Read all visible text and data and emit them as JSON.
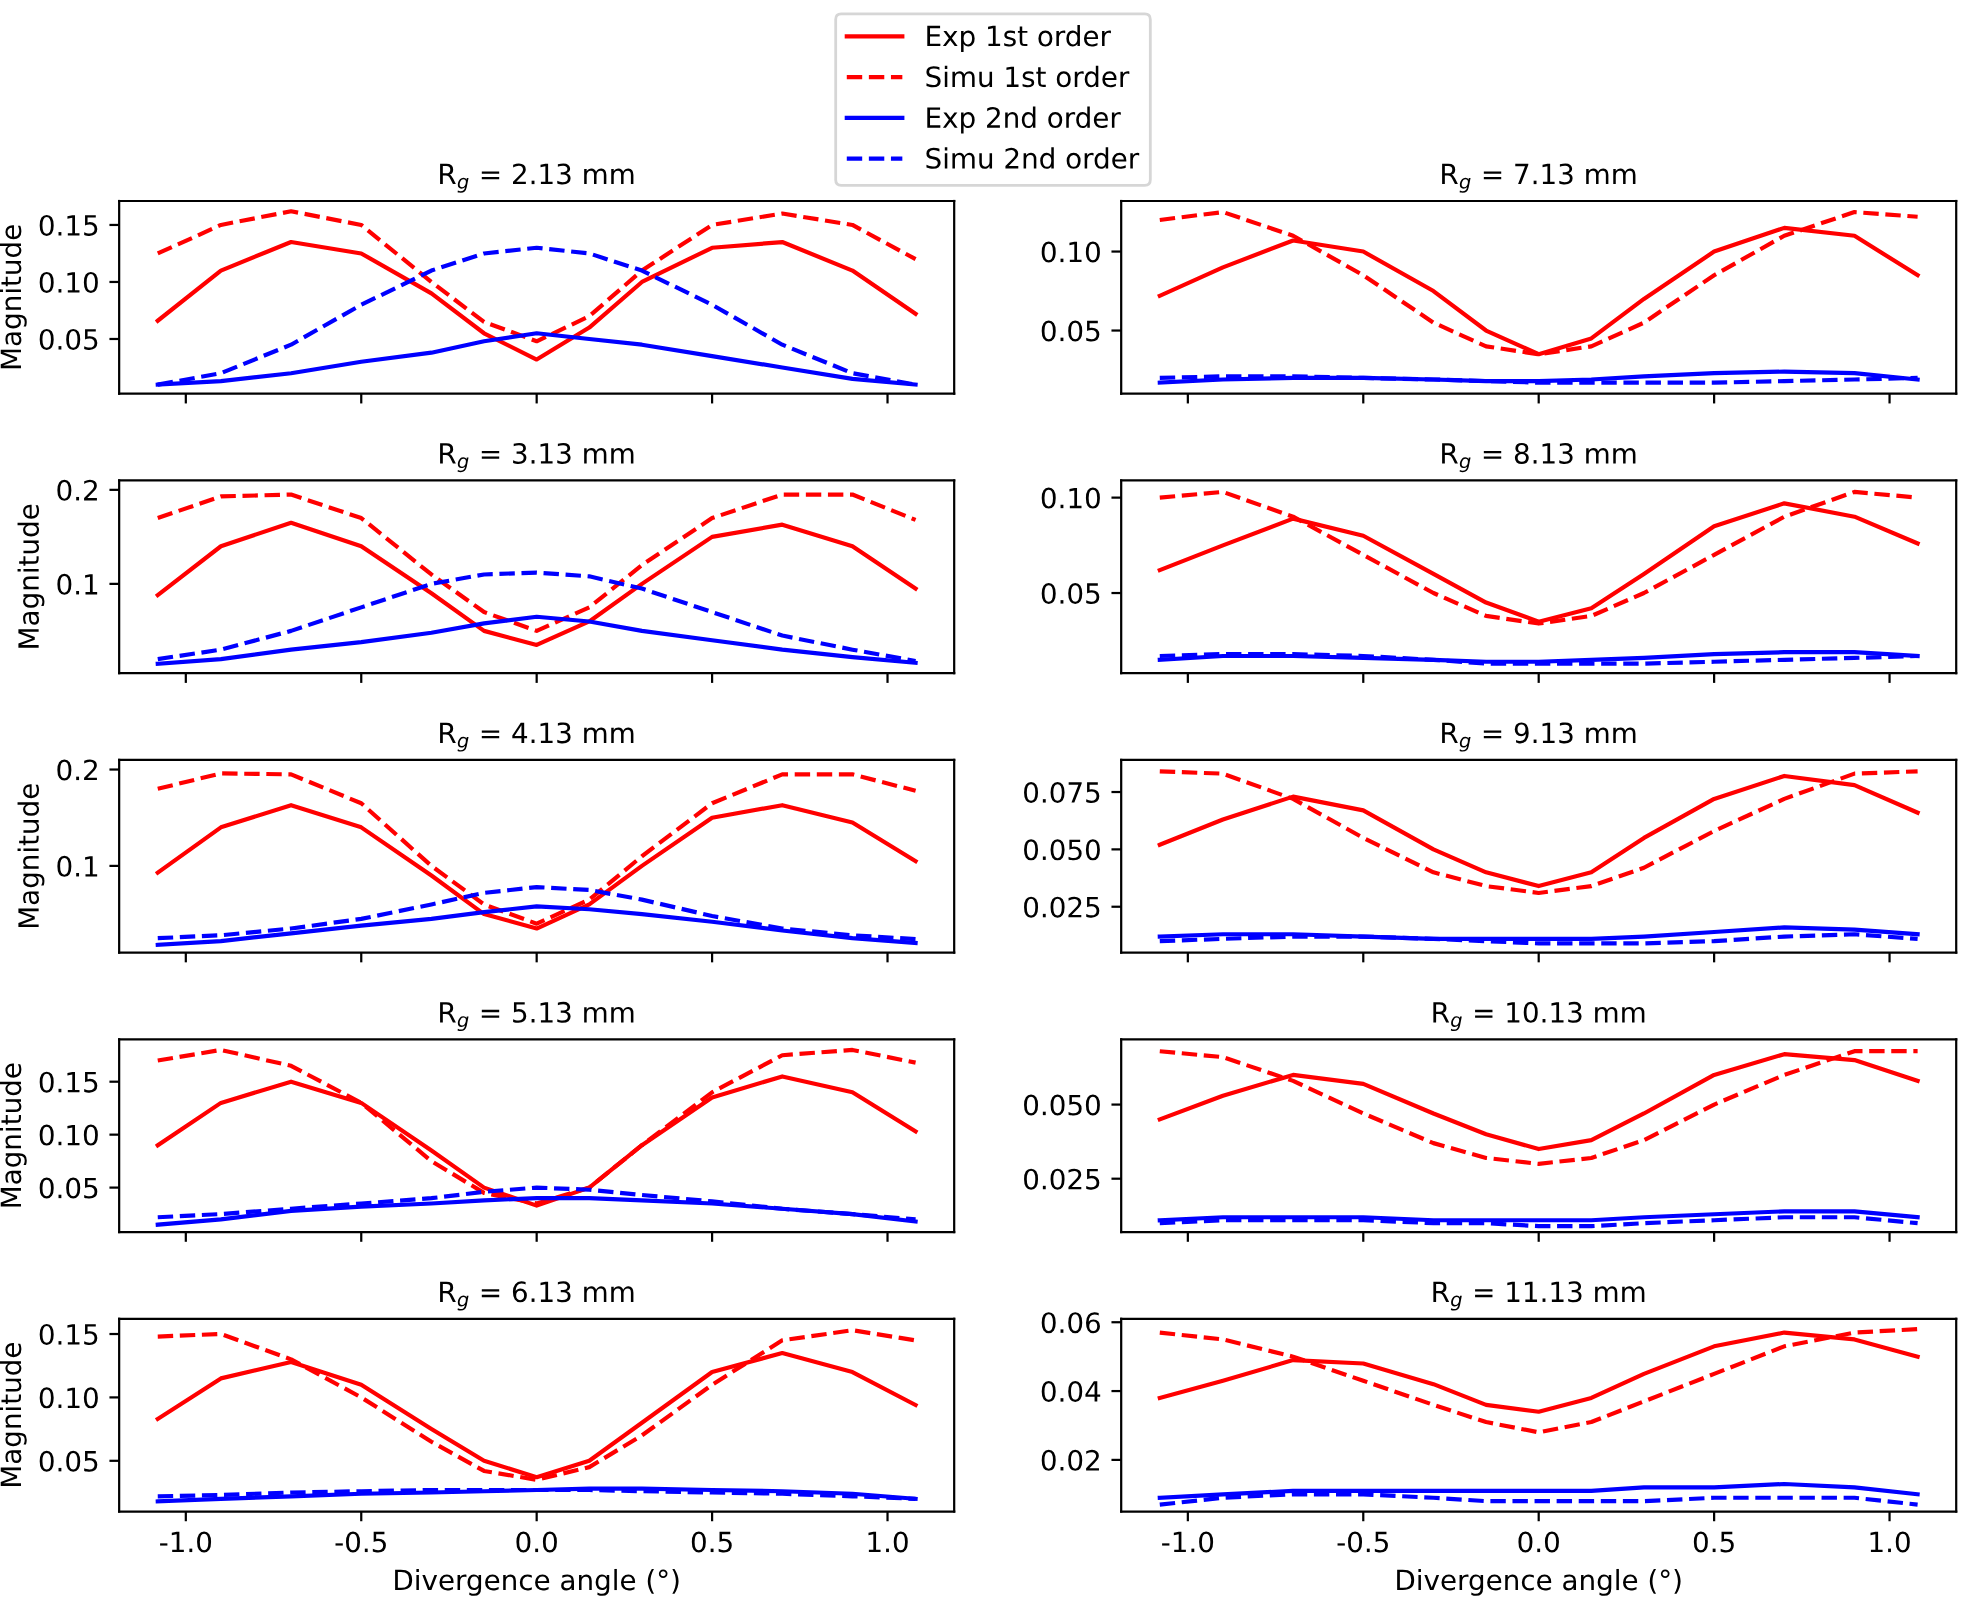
{
  "chart_data": [
    {
      "type": "line",
      "title": "R$_{g}$ = 2.13 mm",
      "ylabel": "Magnitude",
      "x": [
        -1.08,
        -0.9,
        -0.7,
        -0.5,
        -0.3,
        -0.15,
        0,
        0.15,
        0.3,
        0.5,
        0.7,
        0.9,
        1.08
      ],
      "xlim": [
        -1.19,
        1.19
      ],
      "xticks": [
        -1.0,
        -0.5,
        0.0,
        0.5,
        1.0
      ],
      "ylim": [
        0.002,
        0.171
      ],
      "yticks": [
        {
          "value": 0.05,
          "label": "0.05"
        },
        {
          "value": 0.1,
          "label": "0.10"
        },
        {
          "value": 0.15,
          "label": "0.15"
        }
      ],
      "tick_labels": "y",
      "legend": "top",
      "series": [
        {
          "name": "Exp 1st order",
          "color": "#ff0000",
          "line_style": "solid",
          "values": [
            0.066,
            0.11,
            0.135,
            0.125,
            0.09,
            0.055,
            0.032,
            0.06,
            0.1,
            0.13,
            0.135,
            0.11,
            0.072
          ]
        },
        {
          "name": "Simu 1st order",
          "color": "#ff0000",
          "line_style": "dashed",
          "values": [
            0.125,
            0.15,
            0.162,
            0.15,
            0.1,
            0.065,
            0.048,
            0.07,
            0.11,
            0.15,
            0.16,
            0.15,
            0.12
          ]
        },
        {
          "name": "Exp 2nd order",
          "color": "#0000ff",
          "line_style": "solid",
          "values": [
            0.01,
            0.013,
            0.02,
            0.03,
            0.038,
            0.048,
            0.055,
            0.05,
            0.045,
            0.035,
            0.025,
            0.015,
            0.01
          ]
        },
        {
          "name": "Simu 2nd order",
          "color": "#0000ff",
          "line_style": "dashed",
          "values": [
            0.01,
            0.02,
            0.045,
            0.08,
            0.11,
            0.125,
            0.13,
            0.125,
            0.11,
            0.08,
            0.045,
            0.02,
            0.01
          ]
        }
      ]
    },
    {
      "type": "line",
      "title": "R$_{g}$ = 7.13 mm",
      "x": [
        -1.08,
        -0.9,
        -0.7,
        -0.5,
        -0.3,
        -0.15,
        0,
        0.15,
        0.3,
        0.5,
        0.7,
        0.9,
        1.08
      ],
      "xlim": [
        -1.19,
        1.19
      ],
      "xticks": [
        -1.0,
        -0.5,
        0.0,
        0.5,
        1.0
      ],
      "ylim": [
        0.01,
        0.132
      ],
      "yticks": [
        {
          "value": 0.05,
          "label": "0.05"
        },
        {
          "value": 0.1,
          "label": "0.10"
        }
      ],
      "tick_labels": "y",
      "series": [
        {
          "color": "#ff0000",
          "line_style": "solid",
          "values": [
            0.072,
            0.09,
            0.107,
            0.1,
            0.075,
            0.05,
            0.035,
            0.045,
            0.07,
            0.1,
            0.115,
            0.11,
            0.085
          ]
        },
        {
          "color": "#ff0000",
          "line_style": "dashed",
          "values": [
            0.12,
            0.125,
            0.11,
            0.085,
            0.055,
            0.04,
            0.035,
            0.04,
            0.055,
            0.085,
            0.11,
            0.125,
            0.122
          ]
        },
        {
          "color": "#0000ff",
          "line_style": "solid",
          "values": [
            0.017,
            0.019,
            0.02,
            0.02,
            0.019,
            0.018,
            0.018,
            0.019,
            0.021,
            0.023,
            0.024,
            0.023,
            0.019
          ]
        },
        {
          "color": "#0000ff",
          "line_style": "dashed",
          "values": [
            0.02,
            0.021,
            0.021,
            0.02,
            0.019,
            0.018,
            0.017,
            0.017,
            0.017,
            0.017,
            0.018,
            0.019,
            0.02
          ]
        }
      ]
    },
    {
      "type": "line",
      "title": "R$_{g}$ = 3.13 mm",
      "ylabel": "Magnitude",
      "x": [
        -1.08,
        -0.9,
        -0.7,
        -0.5,
        -0.3,
        -0.15,
        0,
        0.15,
        0.3,
        0.5,
        0.7,
        0.9,
        1.08
      ],
      "xlim": [
        -1.19,
        1.19
      ],
      "xticks": [
        -1.0,
        -0.5,
        0.0,
        0.5,
        1.0
      ],
      "ylim": [
        0.005,
        0.21
      ],
      "yticks": [
        0.1,
        0.2
      ],
      "tick_labels": "y",
      "series": [
        {
          "color": "#ff0000",
          "line_style": "solid",
          "values": [
            0.088,
            0.14,
            0.165,
            0.14,
            0.09,
            0.05,
            0.035,
            0.06,
            0.1,
            0.15,
            0.163,
            0.14,
            0.095
          ]
        },
        {
          "color": "#ff0000",
          "line_style": "dashed",
          "values": [
            0.17,
            0.193,
            0.195,
            0.17,
            0.11,
            0.07,
            0.05,
            0.075,
            0.12,
            0.17,
            0.195,
            0.195,
            0.168
          ]
        },
        {
          "color": "#0000ff",
          "line_style": "solid",
          "values": [
            0.015,
            0.02,
            0.03,
            0.038,
            0.048,
            0.058,
            0.065,
            0.06,
            0.05,
            0.04,
            0.03,
            0.022,
            0.016
          ]
        },
        {
          "color": "#0000ff",
          "line_style": "dashed",
          "values": [
            0.02,
            0.03,
            0.05,
            0.075,
            0.1,
            0.11,
            0.112,
            0.108,
            0.095,
            0.07,
            0.045,
            0.03,
            0.018
          ]
        }
      ]
    },
    {
      "type": "line",
      "title": "R$_{g}$ = 8.13 mm",
      "x": [
        -1.08,
        -0.9,
        -0.7,
        -0.5,
        -0.3,
        -0.15,
        0,
        0.15,
        0.3,
        0.5,
        0.7,
        0.9,
        1.08
      ],
      "xlim": [
        -1.19,
        1.19
      ],
      "xticks": [
        -1.0,
        -0.5,
        0.0,
        0.5,
        1.0
      ],
      "ylim": [
        0.008,
        0.109
      ],
      "yticks": [
        {
          "value": 0.05,
          "label": "0.05"
        },
        {
          "value": 0.1,
          "label": "0.10"
        }
      ],
      "tick_labels": "y",
      "series": [
        {
          "color": "#ff0000",
          "line_style": "solid",
          "values": [
            0.062,
            0.075,
            0.089,
            0.08,
            0.06,
            0.045,
            0.035,
            0.042,
            0.06,
            0.085,
            0.097,
            0.09,
            0.076
          ]
        },
        {
          "color": "#ff0000",
          "line_style": "dashed",
          "values": [
            0.1,
            0.103,
            0.09,
            0.07,
            0.05,
            0.038,
            0.034,
            0.038,
            0.05,
            0.07,
            0.09,
            0.103,
            0.1
          ]
        },
        {
          "color": "#0000ff",
          "line_style": "solid",
          "values": [
            0.015,
            0.017,
            0.017,
            0.016,
            0.015,
            0.014,
            0.014,
            0.015,
            0.016,
            0.018,
            0.019,
            0.019,
            0.017
          ]
        },
        {
          "color": "#0000ff",
          "line_style": "dashed",
          "values": [
            0.017,
            0.018,
            0.018,
            0.017,
            0.015,
            0.013,
            0.013,
            0.013,
            0.013,
            0.014,
            0.015,
            0.016,
            0.017
          ]
        }
      ]
    },
    {
      "type": "line",
      "title": "R$_{g}$ = 4.13 mm",
      "ylabel": "Magnitude",
      "x": [
        -1.08,
        -0.9,
        -0.7,
        -0.5,
        -0.3,
        -0.15,
        0,
        0.15,
        0.3,
        0.5,
        0.7,
        0.9,
        1.08
      ],
      "xlim": [
        -1.19,
        1.19
      ],
      "xticks": [
        -1.0,
        -0.5,
        0.0,
        0.5,
        1.0
      ],
      "ylim": [
        0.01,
        0.21
      ],
      "yticks": [
        0.1,
        0.2
      ],
      "tick_labels": "y",
      "series": [
        {
          "color": "#ff0000",
          "line_style": "solid",
          "values": [
            0.093,
            0.14,
            0.163,
            0.14,
            0.09,
            0.05,
            0.035,
            0.06,
            0.1,
            0.15,
            0.163,
            0.145,
            0.105
          ]
        },
        {
          "color": "#ff0000",
          "line_style": "dashed",
          "values": [
            0.18,
            0.196,
            0.195,
            0.165,
            0.1,
            0.06,
            0.04,
            0.065,
            0.11,
            0.165,
            0.195,
            0.195,
            0.178
          ]
        },
        {
          "color": "#0000ff",
          "line_style": "solid",
          "values": [
            0.018,
            0.022,
            0.03,
            0.038,
            0.045,
            0.052,
            0.058,
            0.055,
            0.05,
            0.042,
            0.033,
            0.025,
            0.02
          ]
        },
        {
          "color": "#0000ff",
          "line_style": "dashed",
          "values": [
            0.025,
            0.028,
            0.035,
            0.045,
            0.06,
            0.072,
            0.078,
            0.075,
            0.065,
            0.048,
            0.035,
            0.028,
            0.024
          ]
        }
      ]
    },
    {
      "type": "line",
      "title": "R$_{g}$ = 9.13 mm",
      "x": [
        -1.08,
        -0.9,
        -0.7,
        -0.5,
        -0.3,
        -0.15,
        0,
        0.15,
        0.3,
        0.5,
        0.7,
        0.9,
        1.08
      ],
      "xlim": [
        -1.19,
        1.19
      ],
      "xticks": [
        -1.0,
        -0.5,
        0.0,
        0.5,
        1.0
      ],
      "ylim": [
        0.005,
        0.089
      ],
      "yticks": [
        {
          "value": 0.025,
          "label": "0.025"
        },
        {
          "value": 0.05,
          "label": "0.050"
        },
        {
          "value": 0.075,
          "label": "0.075"
        }
      ],
      "tick_labels": "y",
      "series": [
        {
          "color": "#ff0000",
          "line_style": "solid",
          "values": [
            0.052,
            0.063,
            0.073,
            0.067,
            0.05,
            0.04,
            0.034,
            0.04,
            0.055,
            0.072,
            0.082,
            0.078,
            0.066
          ]
        },
        {
          "color": "#ff0000",
          "line_style": "dashed",
          "values": [
            0.084,
            0.083,
            0.072,
            0.055,
            0.04,
            0.034,
            0.031,
            0.034,
            0.042,
            0.058,
            0.072,
            0.083,
            0.084
          ]
        },
        {
          "color": "#0000ff",
          "line_style": "solid",
          "values": [
            0.012,
            0.013,
            0.013,
            0.012,
            0.011,
            0.011,
            0.011,
            0.011,
            0.012,
            0.014,
            0.016,
            0.015,
            0.013
          ]
        },
        {
          "color": "#0000ff",
          "line_style": "dashed",
          "values": [
            0.01,
            0.011,
            0.012,
            0.012,
            0.011,
            0.01,
            0.009,
            0.009,
            0.009,
            0.01,
            0.012,
            0.013,
            0.011
          ]
        }
      ]
    },
    {
      "type": "line",
      "title": "R$_{g}$ = 5.13 mm",
      "ylabel": "Magnitude",
      "x": [
        -1.08,
        -0.9,
        -0.7,
        -0.5,
        -0.3,
        -0.15,
        0,
        0.15,
        0.3,
        0.5,
        0.7,
        0.9,
        1.08
      ],
      "xlim": [
        -1.19,
        1.19
      ],
      "xticks": [
        -1.0,
        -0.5,
        0.0,
        0.5,
        1.0
      ],
      "ylim": [
        0.008,
        0.19
      ],
      "yticks": [
        {
          "value": 0.05,
          "label": "0.05"
        },
        {
          "value": 0.1,
          "label": "0.10"
        },
        {
          "value": 0.15,
          "label": "0.15"
        }
      ],
      "tick_labels": "y",
      "series": [
        {
          "color": "#ff0000",
          "line_style": "solid",
          "values": [
            0.09,
            0.13,
            0.15,
            0.13,
            0.085,
            0.05,
            0.033,
            0.05,
            0.09,
            0.135,
            0.155,
            0.14,
            0.103
          ]
        },
        {
          "color": "#ff0000",
          "line_style": "dashed",
          "values": [
            0.17,
            0.18,
            0.165,
            0.13,
            0.075,
            0.045,
            0.035,
            0.05,
            0.09,
            0.14,
            0.175,
            0.18,
            0.168
          ]
        },
        {
          "color": "#0000ff",
          "line_style": "solid",
          "values": [
            0.015,
            0.02,
            0.028,
            0.032,
            0.035,
            0.038,
            0.04,
            0.04,
            0.038,
            0.035,
            0.03,
            0.025,
            0.018
          ]
        },
        {
          "color": "#0000ff",
          "line_style": "dashed",
          "values": [
            0.022,
            0.025,
            0.03,
            0.035,
            0.04,
            0.046,
            0.05,
            0.048,
            0.043,
            0.037,
            0.03,
            0.025,
            0.02
          ]
        }
      ]
    },
    {
      "type": "line",
      "title": "R$_{g}$ = 10.13 mm",
      "x": [
        -1.08,
        -0.9,
        -0.7,
        -0.5,
        -0.3,
        -0.15,
        0,
        0.15,
        0.3,
        0.5,
        0.7,
        0.9,
        1.08
      ],
      "xlim": [
        -1.19,
        1.19
      ],
      "xticks": [
        -1.0,
        -0.5,
        0.0,
        0.5,
        1.0
      ],
      "ylim": [
        0.007,
        0.072
      ],
      "yticks": [
        {
          "value": 0.025,
          "label": "0.025"
        },
        {
          "value": 0.05,
          "label": "0.050"
        }
      ],
      "tick_labels": "y",
      "series": [
        {
          "color": "#ff0000",
          "line_style": "solid",
          "values": [
            0.045,
            0.053,
            0.06,
            0.057,
            0.047,
            0.04,
            0.035,
            0.038,
            0.047,
            0.06,
            0.067,
            0.065,
            0.058
          ]
        },
        {
          "color": "#ff0000",
          "line_style": "dashed",
          "values": [
            0.068,
            0.066,
            0.058,
            0.047,
            0.037,
            0.032,
            0.03,
            0.032,
            0.038,
            0.05,
            0.06,
            0.068,
            0.068
          ]
        },
        {
          "color": "#0000ff",
          "line_style": "solid",
          "values": [
            0.011,
            0.012,
            0.012,
            0.012,
            0.011,
            0.011,
            0.011,
            0.011,
            0.012,
            0.013,
            0.014,
            0.014,
            0.012
          ]
        },
        {
          "color": "#0000ff",
          "line_style": "dashed",
          "values": [
            0.01,
            0.011,
            0.011,
            0.011,
            0.01,
            0.01,
            0.009,
            0.009,
            0.01,
            0.011,
            0.012,
            0.012,
            0.01
          ]
        }
      ]
    },
    {
      "type": "line",
      "title": "R$_{g}$ = 6.13 mm",
      "ylabel": "Magnitude",
      "xlabel": "Divergence angle (°)",
      "x": [
        -1.08,
        -0.9,
        -0.7,
        -0.5,
        -0.3,
        -0.15,
        0,
        0.15,
        0.3,
        0.5,
        0.7,
        0.9,
        1.08
      ],
      "xlim": [
        -1.19,
        1.19
      ],
      "xticks": [
        {
          "value": -1.0,
          "label": "-1.0"
        },
        -0.5,
        {
          "value": 0.0,
          "label": "0.0"
        },
        0.5,
        {
          "value": 1.0,
          "label": "1.0"
        }
      ],
      "ylim": [
        0.01,
        0.162
      ],
      "yticks": [
        {
          "value": 0.05,
          "label": "0.05"
        },
        {
          "value": 0.1,
          "label": "0.10"
        },
        {
          "value": 0.15,
          "label": "0.15"
        }
      ],
      "series": [
        {
          "color": "#ff0000",
          "line_style": "solid",
          "values": [
            0.083,
            0.115,
            0.128,
            0.11,
            0.075,
            0.05,
            0.037,
            0.05,
            0.08,
            0.12,
            0.135,
            0.12,
            0.094
          ]
        },
        {
          "color": "#ff0000",
          "line_style": "dashed",
          "values": [
            0.148,
            0.15,
            0.13,
            0.1,
            0.065,
            0.042,
            0.035,
            0.045,
            0.07,
            0.11,
            0.145,
            0.153,
            0.145
          ]
        },
        {
          "color": "#0000ff",
          "line_style": "solid",
          "values": [
            0.018,
            0.02,
            0.022,
            0.024,
            0.025,
            0.026,
            0.027,
            0.028,
            0.028,
            0.027,
            0.026,
            0.024,
            0.02
          ]
        },
        {
          "color": "#0000ff",
          "line_style": "dashed",
          "values": [
            0.022,
            0.023,
            0.025,
            0.026,
            0.027,
            0.027,
            0.027,
            0.027,
            0.026,
            0.025,
            0.024,
            0.022,
            0.02
          ]
        }
      ]
    },
    {
      "type": "line",
      "title": "R$_{g}$ = 11.13 mm",
      "xlabel": "Divergence angle (°)",
      "x": [
        -1.08,
        -0.9,
        -0.7,
        -0.5,
        -0.3,
        -0.15,
        0,
        0.15,
        0.3,
        0.5,
        0.7,
        0.9,
        1.08
      ],
      "xlim": [
        -1.19,
        1.19
      ],
      "xticks": [
        {
          "value": -1.0,
          "label": "-1.0"
        },
        -0.5,
        {
          "value": 0.0,
          "label": "0.0"
        },
        0.5,
        {
          "value": 1.0,
          "label": "1.0"
        }
      ],
      "ylim": [
        0.005,
        0.061
      ],
      "yticks": [
        0.02,
        0.04,
        0.06
      ],
      "series": [
        {
          "color": "#ff0000",
          "line_style": "solid",
          "values": [
            0.038,
            0.043,
            0.049,
            0.048,
            0.042,
            0.036,
            0.034,
            0.038,
            0.045,
            0.053,
            0.057,
            0.055,
            0.05
          ]
        },
        {
          "color": "#ff0000",
          "line_style": "dashed",
          "values": [
            0.057,
            0.055,
            0.05,
            0.043,
            0.036,
            0.031,
            0.028,
            0.031,
            0.037,
            0.045,
            0.053,
            0.057,
            0.058
          ]
        },
        {
          "color": "#0000ff",
          "line_style": "solid",
          "values": [
            0.009,
            0.01,
            0.011,
            0.011,
            0.011,
            0.011,
            0.011,
            0.011,
            0.012,
            0.012,
            0.013,
            0.012,
            0.01
          ]
        },
        {
          "color": "#0000ff",
          "line_style": "dashed",
          "values": [
            0.007,
            0.009,
            0.01,
            0.01,
            0.009,
            0.008,
            0.008,
            0.008,
            0.008,
            0.009,
            0.009,
            0.009,
            0.007
          ]
        }
      ]
    }
  ]
}
